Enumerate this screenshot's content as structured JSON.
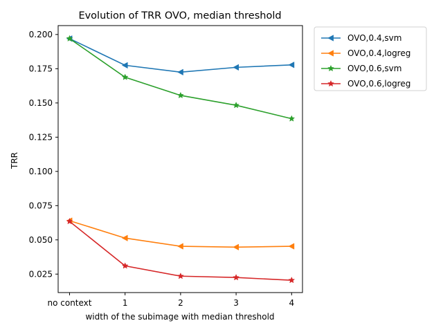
{
  "chart_data": {
    "type": "line",
    "title": "Evolution of TRR OVO, median threshold",
    "xlabel": "width of the subimage with median threshold",
    "ylabel": "TRR",
    "categories": [
      "no context",
      "1",
      "2",
      "3",
      "4"
    ],
    "ylim": [
      0.0115,
      0.2065
    ],
    "yticks": [
      0.025,
      0.05,
      0.075,
      0.1,
      0.125,
      0.15,
      0.175,
      0.2
    ],
    "ytick_labels": [
      "0.025",
      "0.050",
      "0.075",
      "0.100",
      "0.125",
      "0.150",
      "0.175",
      "0.200"
    ],
    "grid": false,
    "legend_position": "outside-top-right",
    "series": [
      {
        "name": "OVO,0.4,svm",
        "marker": "triangle-left",
        "color": "#1f77b4",
        "values": [
          0.197,
          0.1775,
          0.1725,
          0.176,
          0.1778
        ]
      },
      {
        "name": "OVO,0.4,logreg",
        "marker": "triangle-left",
        "color": "#ff7f0e",
        "values": [
          0.064,
          0.0513,
          0.0453,
          0.0447,
          0.0453
        ]
      },
      {
        "name": "OVO,0.6,svm",
        "marker": "star",
        "color": "#2ca02c",
        "values": [
          0.197,
          0.1688,
          0.1555,
          0.1483,
          0.1385
        ]
      },
      {
        "name": "OVO,0.6,logreg",
        "marker": "star",
        "color": "#d62728",
        "values": [
          0.0635,
          0.031,
          0.0235,
          0.0225,
          0.0205
        ]
      }
    ]
  }
}
